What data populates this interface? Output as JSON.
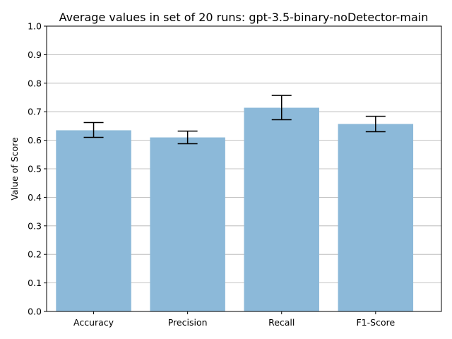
{
  "chart_data": {
    "type": "bar",
    "title": "Average values in set of 20 runs: gpt-3.5-binary-noDetector-main",
    "xlabel": "",
    "ylabel": "Value of Score",
    "categories": [
      "Accuracy",
      "Precision",
      "Recall",
      "F1-Score"
    ],
    "values": [
      0.635,
      0.61,
      0.714,
      0.657
    ],
    "error_low": [
      0.61,
      0.588,
      0.672,
      0.63
    ],
    "error_high": [
      0.662,
      0.632,
      0.757,
      0.684
    ],
    "ylim": [
      0,
      1.0
    ],
    "yticks": [
      "0.0",
      "0.1",
      "0.2",
      "0.3",
      "0.4",
      "0.5",
      "0.6",
      "0.7",
      "0.8",
      "0.9",
      "1.0"
    ],
    "grid": "horizontal",
    "bar_color": "#8cb9d9",
    "grid_color": "#b0b0b0",
    "errorbar_color": "#000000"
  }
}
